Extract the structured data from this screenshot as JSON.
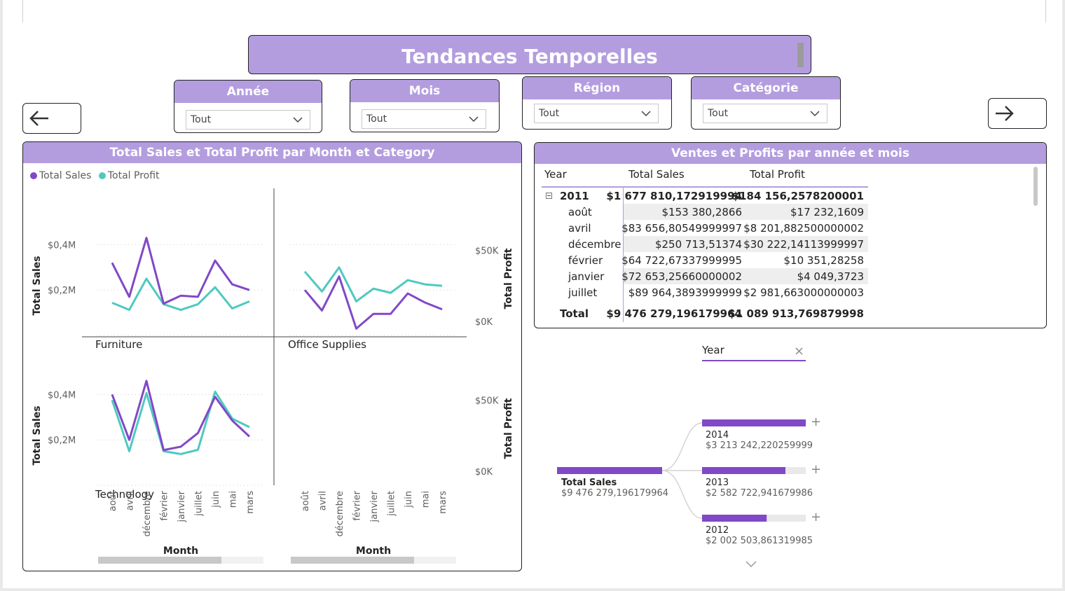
{
  "page": {
    "title": "Tendances Temporelles"
  },
  "slicers": [
    {
      "label": "Année",
      "value": "Tout"
    },
    {
      "label": "Mois",
      "value": "Tout"
    },
    {
      "label": "Région",
      "value": "Tout"
    },
    {
      "label": "Catégorie",
      "value": "Tout"
    }
  ],
  "nav": {
    "back_icon": "arrow-left-icon",
    "forward_icon": "arrow-right-icon"
  },
  "colors": {
    "accent": "#b39ddf",
    "sales": "#8148c7",
    "profit": "#4fc9c0"
  },
  "line_panel": {
    "title": "Total Sales et Total Profit par Month et Category",
    "legend": [
      "Total Sales",
      "Total Profit"
    ],
    "y_left_title": "Total Sales",
    "y_right_title": "Total Profit",
    "x_title": "Month",
    "y_left_ticks": [
      "$0,4M",
      "$0,2M"
    ],
    "y_right_ticks": [
      "$50K",
      "$0K"
    ]
  },
  "chart_data": [
    {
      "type": "line",
      "title": "Furniture",
      "x": [
        "août",
        "avril",
        "décembre",
        "février",
        "janvier",
        "juillet",
        "juin",
        "mai",
        "mars"
      ],
      "series": [
        {
          "name": "Total Sales",
          "axis": "left",
          "values": [
            0.32,
            0.17,
            0.43,
            0.14,
            0.175,
            0.17,
            0.33,
            0.225,
            0.2
          ]
        },
        {
          "name": "Total Profit",
          "axis": "right",
          "values": [
            13,
            8,
            30,
            12,
            8,
            12,
            24,
            9,
            14
          ]
        }
      ],
      "ylim_left": [
        0,
        0.5
      ],
      "ylim_right": [
        -10,
        70
      ]
    },
    {
      "type": "line",
      "title": "Office Supplies",
      "x": [
        "août",
        "avril",
        "décembre",
        "février",
        "janvier",
        "juillet",
        "juin",
        "mai",
        "mars"
      ],
      "series": [
        {
          "name": "Total Sales",
          "axis": "left",
          "values": [
            0.2,
            0.11,
            0.26,
            0.03,
            0.095,
            0.095,
            0.185,
            0.145,
            0.115
          ]
        },
        {
          "name": "Total Profit",
          "axis": "right",
          "values": [
            35,
            21,
            38,
            14,
            23,
            20,
            29,
            26,
            25
          ]
        }
      ],
      "ylim_left": [
        0,
        0.5
      ],
      "ylim_right": [
        -10,
        70
      ]
    },
    {
      "type": "line",
      "title": "Technology",
      "x": [
        "août",
        "avril",
        "décembre",
        "février",
        "janvier",
        "juillet",
        "juin",
        "mai",
        "mars"
      ],
      "series": [
        {
          "name": "Total Sales",
          "axis": "left",
          "values": [
            0.4,
            0.2,
            0.46,
            0.155,
            0.17,
            0.23,
            0.39,
            0.285,
            0.215
          ]
        },
        {
          "name": "Total Profit",
          "axis": "right",
          "values": [
            50,
            14,
            55,
            14,
            12,
            15,
            56,
            37,
            31
          ]
        }
      ],
      "ylim_left": [
        0,
        0.5
      ],
      "ylim_right": [
        -10,
        70
      ]
    }
  ],
  "matrix": {
    "title": "Ventes et Profits par année et mois",
    "columns": [
      "Year",
      "Total Sales",
      "Total Profit"
    ],
    "group": {
      "label": "2011",
      "sales": "$1 677 810,172919994",
      "profit": "$184 156,2578200001"
    },
    "rows": [
      {
        "label": "août",
        "sales": "$153 380,2866",
        "profit": "$17 232,1609"
      },
      {
        "label": "avril",
        "sales": "$83 656,80549999997",
        "profit": "$8 201,882500000002"
      },
      {
        "label": "décembre",
        "sales": "$250 713,51374",
        "profit": "$30 222,14113999997"
      },
      {
        "label": "février",
        "sales": "$64 722,67337999995",
        "profit": "$10 351,28258"
      },
      {
        "label": "janvier",
        "sales": "$72 653,25660000002",
        "profit": "$4 049,3723"
      },
      {
        "label": "juillet",
        "sales": "$89 964,3893999999",
        "profit": "$2 981,663000000003"
      }
    ],
    "total": {
      "label": "Total",
      "sales": "$9 476 279,196179964",
      "profit": "$1 089 913,769879998"
    }
  },
  "decomposition": {
    "header_label": "Year",
    "root": {
      "label": "Total Sales",
      "value": "$9 476 279,196179964",
      "fraction": 1.0
    },
    "nodes": [
      {
        "label": "2014",
        "value": "$3 213 242,220259999",
        "fraction": 1.0
      },
      {
        "label": "2013",
        "value": "$2 582 722,941679986",
        "fraction": 0.804
      },
      {
        "label": "2012",
        "value": "$2 002 503,861319985",
        "fraction": 0.623
      }
    ],
    "expand_symbol": "+"
  }
}
